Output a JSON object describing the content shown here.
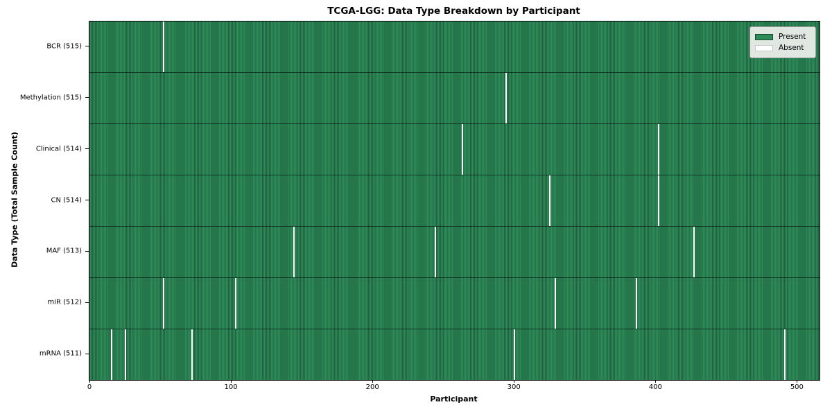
{
  "chart_data": {
    "type": "heatmap",
    "title": "TCGA-LGG: Data Type Breakdown by Participant",
    "xlabel": "Participant",
    "ylabel": "Data Type (Total Sample Count)",
    "x_ticks": [
      0,
      100,
      200,
      300,
      400,
      500
    ],
    "x_range": [
      -0.5,
      515.5
    ],
    "n_participants": 516,
    "grid": false,
    "legend_position": "upper right",
    "legend": [
      {
        "label": "Present",
        "color": "#2e8b57"
      },
      {
        "label": "Absent",
        "color": "#ffffff"
      }
    ],
    "rows": [
      {
        "label": "BCR (515)",
        "data_type": "BCR",
        "present_count": 515,
        "absent_participants": [
          52
        ]
      },
      {
        "label": "Methylation (515)",
        "data_type": "Methylation",
        "present_count": 515,
        "absent_participants": [
          294
        ]
      },
      {
        "label": "Clinical (514)",
        "data_type": "Clinical",
        "present_count": 514,
        "absent_participants": [
          263,
          402
        ]
      },
      {
        "label": "CN (514)",
        "data_type": "CN",
        "present_count": 514,
        "absent_participants": [
          325,
          402
        ]
      },
      {
        "label": "MAF (513)",
        "data_type": "MAF",
        "present_count": 513,
        "absent_participants": [
          144,
          244,
          427
        ]
      },
      {
        "label": "miR (512)",
        "data_type": "miR",
        "present_count": 512,
        "absent_participants": [
          52,
          103,
          329,
          386
        ]
      },
      {
        "label": "mRNA (511)",
        "data_type": "mRNA",
        "present_count": 511,
        "absent_participants": [
          15,
          25,
          72,
          300,
          491
        ]
      }
    ],
    "colors": {
      "present_fill": "#2e8b57",
      "present_edge": "#1f6140",
      "absent_fill": "#ffffff",
      "row_divider": "#1a3b28",
      "spine": "#000000",
      "legend_bg": "#f0f0ed",
      "background": "#ffffff"
    }
  }
}
